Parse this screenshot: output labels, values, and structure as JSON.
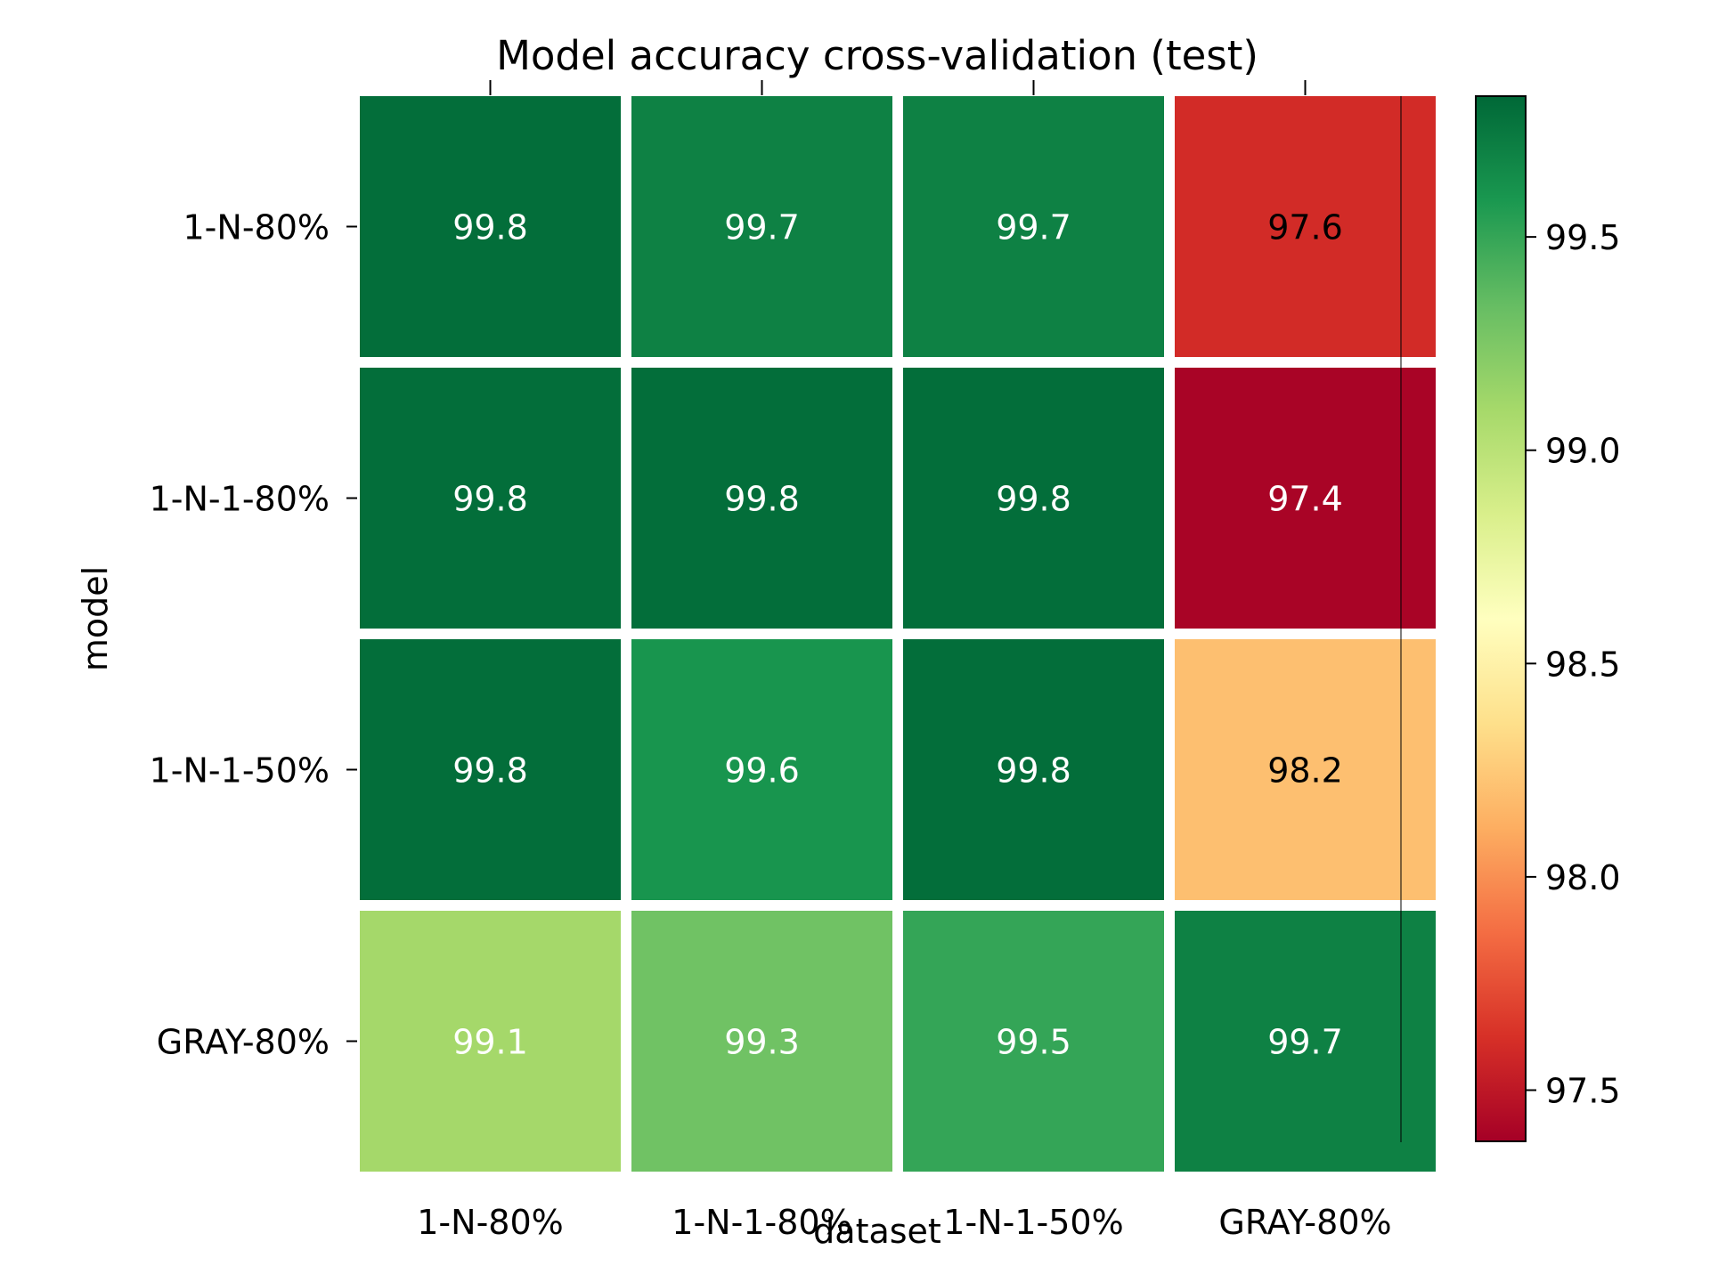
{
  "chart_data": {
    "type": "heatmap",
    "title": "Model accuracy cross-validation (test)",
    "xlabel": "dataset",
    "ylabel": "model",
    "x_categories": [
      "1-N-80%",
      "1-N-1-80%",
      "1-N-1-50%",
      "GRAY-80%"
    ],
    "y_categories": [
      "1-N-80%",
      "1-N-1-80%",
      "1-N-1-50%",
      "GRAY-80%"
    ],
    "values": [
      [
        99.8,
        99.7,
        99.7,
        97.6
      ],
      [
        99.8,
        99.8,
        99.8,
        97.4
      ],
      [
        99.8,
        99.6,
        99.8,
        98.2
      ],
      [
        99.1,
        99.3,
        99.5,
        99.7
      ]
    ],
    "value_labels": [
      [
        "99.8",
        "99.7",
        "99.7",
        "97.6"
      ],
      [
        "99.8",
        "99.8",
        "99.8",
        "97.4"
      ],
      [
        "99.8",
        "99.6",
        "99.8",
        "98.2"
      ],
      [
        "99.1",
        "99.3",
        "99.5",
        "99.7"
      ]
    ],
    "colorbar": {
      "colormap": "RdYlGn",
      "range": [
        97.38,
        99.83
      ],
      "ticks": [
        97.5,
        98.0,
        98.5,
        99.0,
        99.5
      ],
      "tick_labels": [
        "97.5",
        "98.0",
        "98.5",
        "99.0",
        "99.5"
      ]
    },
    "x_tick_position": "bottom-and-top-marks",
    "grid": false
  }
}
